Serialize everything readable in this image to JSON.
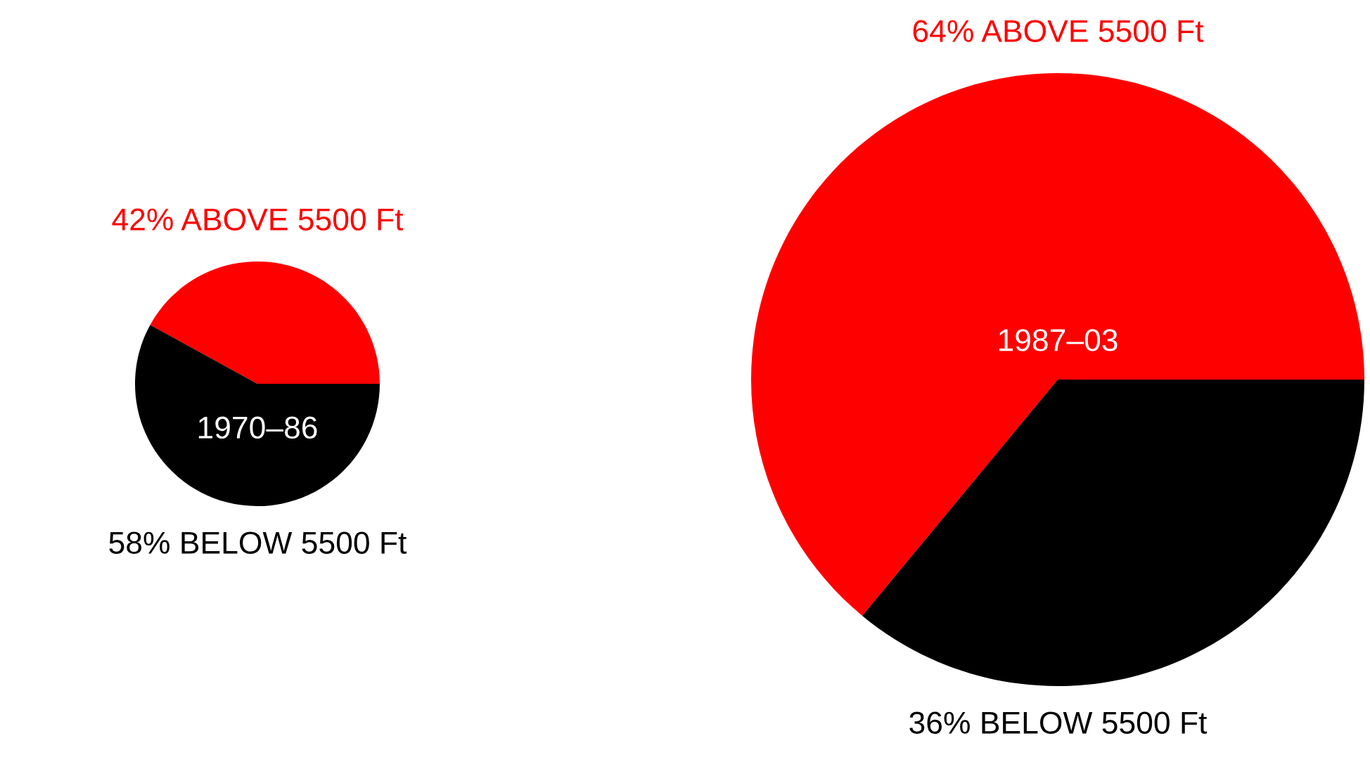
{
  "chart_data": [
    {
      "type": "pie",
      "categories": [
        "42% ABOVE 5500 Ft",
        "58% BELOW 5500 Ft"
      ],
      "values": [
        42,
        58
      ],
      "colors": [
        "#ff0000",
        "#000000"
      ],
      "annotations": [
        "1970–86"
      ]
    },
    {
      "type": "pie",
      "categories": [
        "64% ABOVE 5500 Ft",
        "36% BELOW 5500 Ft"
      ],
      "values": [
        64,
        36
      ],
      "colors": [
        "#ff0000",
        "#000000"
      ],
      "annotations": [
        "1987–03"
      ]
    }
  ]
}
